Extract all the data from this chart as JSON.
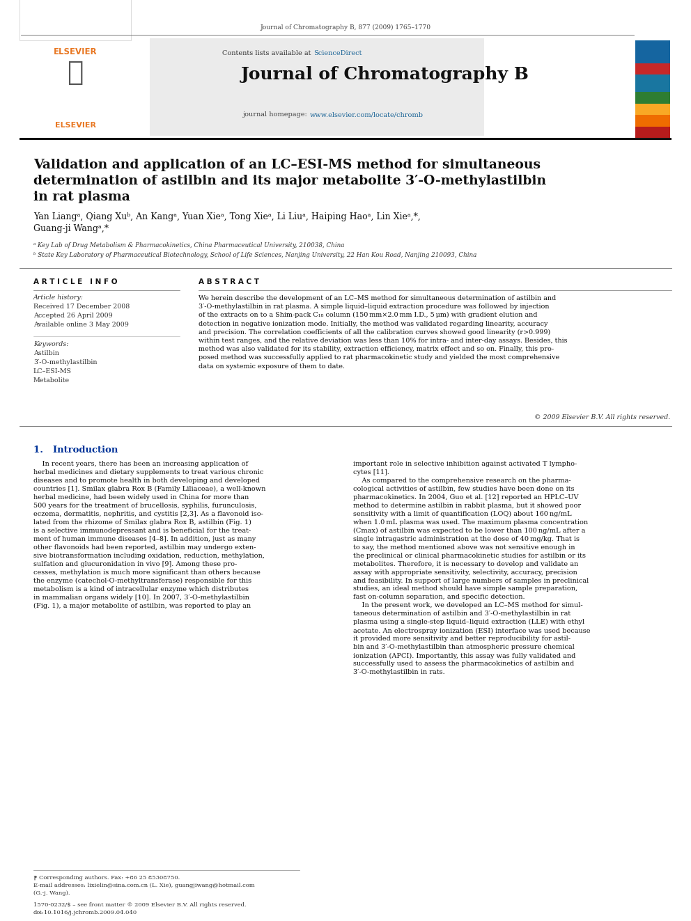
{
  "page_width": 9.92,
  "page_height": 13.23,
  "background_color": "#ffffff",
  "top_citation": "Journal of Chromatography B, 877 (2009) 1765–1770",
  "sciencedirect_color": "#1a6496",
  "journal_name": "Journal of Chromatography B",
  "homepage_url_color": "#1a6496",
  "article_title_line1": "Validation and application of an LC–ESI-MS method for simultaneous",
  "article_title_line2": "determination of astilbin and its major metabolite 3′-O-methylastilbin",
  "article_title_line3": "in rat plasma",
  "authors": "Yan Liangᵃ, Qiang Xuᵇ, An Kangᵃ, Yuan Xieᵃ, Tong Xieᵃ, Li Liuᵃ, Haiping Haoᵃ, Lin Xieᵃ,*,",
  "authors2": "Guang-ji Wangᵃ,*",
  "affil_a": "ᵃ Key Lab of Drug Metabolism & Pharmacokinetics, China Pharmaceutical University, 210038, China",
  "affil_b": "ᵇ State Key Laboratory of Pharmaceutical Biotechnology, School of Life Sciences, Nanjing University, 22 Han Kou Road, Nanjing 210093, China",
  "section_article_info": "A R T I C L E   I N F O",
  "section_abstract": "A B S T R A C T",
  "article_history_label": "Article history:",
  "received": "Received 17 December 2008",
  "accepted": "Accepted 26 April 2009",
  "available": "Available online 3 May 2009",
  "keywords_label": "Keywords:",
  "kw1": "Astilbin",
  "kw2": "3′-O-methylastilbin",
  "kw3": "LC–ESI-MS",
  "kw4": "Metabolite",
  "abstract_text": "We herein describe the development of an LC–MS method for simultaneous determination of astilbin and\n3′-O-methylastilbin in rat plasma. A simple liquid–liquid extraction procedure was followed by injection\nof the extracts on to a Shim-pack C₁₈ column (150 mm×2.0 mm I.D., 5 μm) with gradient elution and\ndetection in negative ionization mode. Initially, the method was validated regarding linearity, accuracy\nand precision. The correlation coefficients of all the calibration curves showed good linearity (r>0.999)\nwithin test ranges, and the relative deviation was less than 10% for intra- and inter-day assays. Besides, this\nmethod was also validated for its stability, extraction efficiency, matrix effect and so on. Finally, this pro-\nposed method was successfully applied to rat pharmacokinetic study and yielded the most comprehensive\ndata on systemic exposure of them to date.",
  "copyright": "© 2009 Elsevier B.V. All rights reserved.",
  "intro_heading": "1.   Introduction",
  "intro_col1": "    In recent years, there has been an increasing application of\nherbal medicines and dietary supplements to treat various chronic\ndiseases and to promote health in both developing and developed\ncountries [1]. Smilax glabra Rox B (Family Liliaceae), a well-known\nherbal medicine, had been widely used in China for more than\n500 years for the treatment of brucellosis, syphilis, furunculosis,\neczema, dermatitis, nephritis, and cystitis [2,3]. As a flavonoid iso-\nlated from the rhizome of Smilax glabra Rox B, astilbin (Fig. 1)\nis a selective immunodepressant and is beneficial for the treat-\nment of human immune diseases [4–8]. In addition, just as many\nother flavonoids had been reported, astilbin may undergo exten-\nsive biotransformation including oxidation, reduction, methylation,\nsulfation and glucuronidation in vivo [9]. Among these pro-\ncesses, methylation is much more significant than others because\nthe enzyme (catechol-O-methyltransferase) responsible for this\nmetabolism is a kind of intracellular enzyme which distributes\nin mammalian organs widely [10]. In 2007, 3′-O-methylastilbin\n(Fig. 1), a major metabolite of astilbin, was reported to play an",
  "intro_col2": "important role in selective inhibition against activated T lympho-\ncytes [11].\n    As compared to the comprehensive research on the pharma-\ncological activities of astilbin, few studies have been done on its\npharmacokinetics. In 2004, Guo et al. [12] reported an HPLC–UV\nmethod to determine astilbin in rabbit plasma, but it showed poor\nsensitivity with a limit of quantification (LOQ) about 160 ng/mL\nwhen 1.0 mL plasma was used. The maximum plasma concentration\n(Cmax) of astilbin was expected to be lower than 100 ng/mL after a\nsingle intragastric administration at the dose of 40 mg/kg. That is\nto say, the method mentioned above was not sensitive enough in\nthe preclinical or clinical pharmacokinetic studies for astilbin or its\nmetabolites. Therefore, it is necessary to develop and validate an\nassay with appropriate sensitivity, selectivity, accuracy, precision\nand feasibility. In support of large numbers of samples in preclinical\nstudies, an ideal method should have simple sample preparation,\nfast on-column separation, and specific detection.\n    In the present work, we developed an LC–MS method for simul-\ntaneous determination of astilbin and 3′-O-methylastilbin in rat\nplasma using a single-step liquid–liquid extraction (LLE) with ethyl\nacetate. An electrospray ionization (ESI) interface was used because\nit provided more sensitivity and better reproducibility for astil-\nbin and 3′-O-methylastilbin than atmospheric pressure chemical\nionization (APCI). Importantly, this assay was fully validated and\nsuccessfully used to assess the pharmacokinetics of astilbin and\n3′-O-methylastilbin in rats.",
  "footnote_star": "⁋ Corresponding authors. Fax: +86 25 85308750.",
  "footnote_email": "E-mail addresses: lixielin@sina.com.cn (L. Xie), guangjiwang@hotmail.com",
  "footnote_email2": "(G.-j. Wang).",
  "issn_line": "1570-0232/$ – see front matter © 2009 Elsevier B.V. All rights reserved.",
  "doi_line": "doi:10.1016/j.jchromb.2009.04.040",
  "intro_heading_color": "#003399",
  "link_color": "#1a6496"
}
